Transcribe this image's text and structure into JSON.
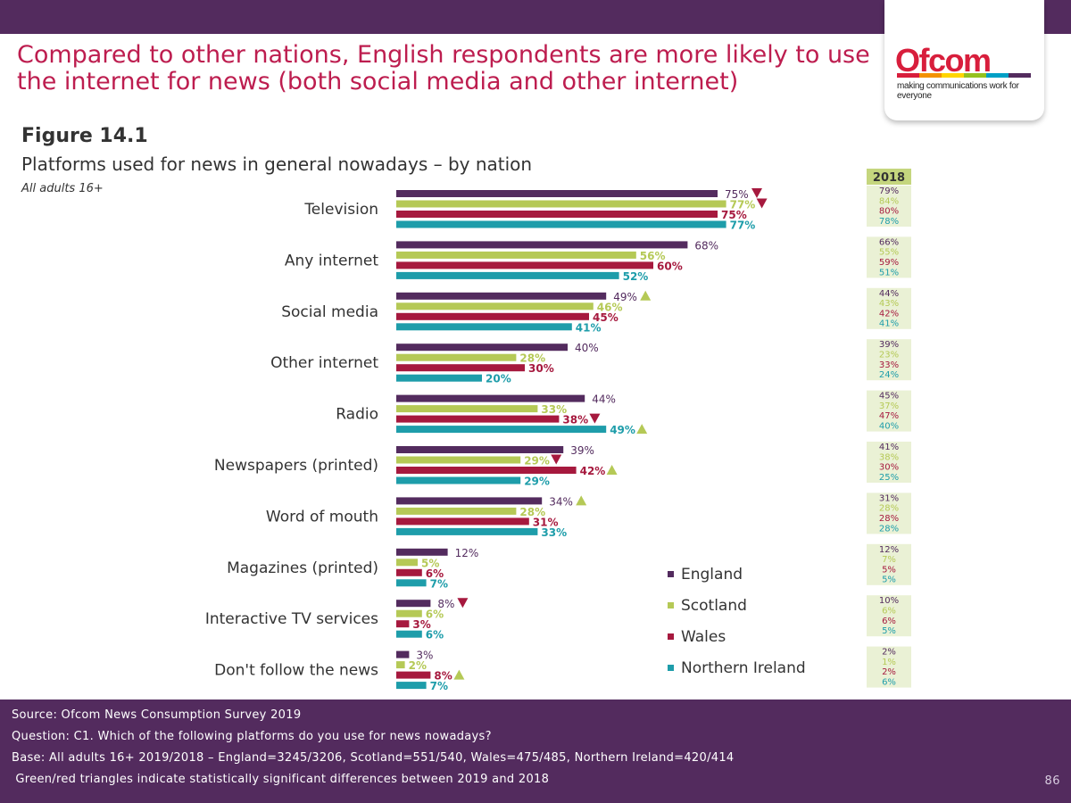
{
  "headline": "Compared to other nations, English respondents are more likely to use the internet for news (both social media and other internet)",
  "figure": {
    "label": "Figure 14.1",
    "subtitle": "Platforms used for news in general nowadays – by nation",
    "base": "All adults 16+"
  },
  "logo": {
    "word": "Ofcom",
    "tagline": "making communications work for everyone",
    "stripe_colors": [
      "#D81E3C",
      "#F39200",
      "#FFD500",
      "#95C11F",
      "#00A0C6",
      "#532B5E"
    ]
  },
  "colors": {
    "England": "#532B5E",
    "Scotland": "#B5C956",
    "Wales": "#A6193E",
    "Northern Ireland": "#1E9DAA",
    "green_triangle": "#B5C956",
    "red_triangle": "#A6193E",
    "table_bg": "#EAF1D5",
    "table_header_bg": "#C5D67E"
  },
  "chart_data": {
    "type": "bar",
    "orientation": "horizontal",
    "title": "Platforms used for news in general nowadays – by nation",
    "xlim": [
      0,
      100
    ],
    "categories": [
      "Television",
      "Any internet",
      "Social media",
      "Other internet",
      "Radio",
      "Newspapers (printed)",
      "Word of mouth",
      "Magazines (printed)",
      "Interactive TV services",
      "Don't follow the news"
    ],
    "series": [
      {
        "name": "England",
        "values": [
          75,
          68,
          49,
          40,
          44,
          39,
          34,
          12,
          8,
          3
        ],
        "labels": [
          "75%",
          "68%",
          "49%",
          "40%",
          "44%",
          "39%",
          "34%",
          "12%",
          "8%",
          "3%"
        ],
        "significance": [
          "down",
          "",
          "up",
          "",
          "",
          "",
          "up",
          "",
          "down",
          ""
        ]
      },
      {
        "name": "Scotland",
        "values": [
          77,
          56,
          46,
          28,
          33,
          29,
          28,
          5,
          6,
          2
        ],
        "labels": [
          "77%",
          "56%",
          "46%",
          "28%",
          "33%",
          "29%",
          "28%",
          "5%",
          "6%",
          "2%"
        ],
        "significance": [
          "down",
          "",
          "",
          "",
          "",
          "down",
          "",
          "",
          "",
          ""
        ]
      },
      {
        "name": "Wales",
        "values": [
          75,
          60,
          45,
          30,
          38,
          42,
          31,
          6,
          3,
          8
        ],
        "labels": [
          "75%",
          "60%",
          "45%",
          "30%",
          "38%",
          "42%",
          "31%",
          "6%",
          "3%",
          "8%"
        ],
        "significance": [
          "",
          "",
          "",
          "",
          "down",
          "up",
          "",
          "",
          "",
          "up"
        ]
      },
      {
        "name": "Northern Ireland",
        "values": [
          77,
          52,
          41,
          20,
          49,
          29,
          33,
          7,
          6,
          7
        ],
        "labels": [
          "77%",
          "52%",
          "41%",
          "20%",
          "49%",
          "29%",
          "33%",
          "7%",
          "6%",
          "7%"
        ],
        "significance": [
          "",
          "",
          "",
          "",
          "up",
          "",
          "",
          "",
          "",
          ""
        ]
      }
    ],
    "comparison_2018": {
      "header": "2018",
      "values": [
        [
          "79%",
          "84%",
          "80%",
          "78%"
        ],
        [
          "66%",
          "55%",
          "59%",
          "51%"
        ],
        [
          "44%",
          "43%",
          "42%",
          "41%"
        ],
        [
          "39%",
          "23%",
          "33%",
          "24%"
        ],
        [
          "45%",
          "37%",
          "47%",
          "40%"
        ],
        [
          "41%",
          "38%",
          "30%",
          "25%"
        ],
        [
          "31%",
          "28%",
          "28%",
          "28%"
        ],
        [
          "12%",
          "7%",
          "5%",
          "5%"
        ],
        [
          "10%",
          "6%",
          "6%",
          "5%"
        ],
        [
          "2%",
          "1%",
          "2%",
          "6%"
        ]
      ]
    },
    "legend": [
      "England",
      "Scotland",
      "Wales",
      "Northern Ireland"
    ],
    "legend_position": "bottom-right"
  },
  "footer": {
    "source": "Source: Ofcom News Consumption Survey 2019",
    "question": "Question: C1. Which of the following platforms do you use for news nowadays?",
    "base": "Base: All adults 16+ 2019/2018 – England=3245/3206, Scotland=551/540, Wales=475/485, Northern Ireland=420/414",
    "note": " Green/red triangles indicate statistically significant differences between 2019 and 2018",
    "page_number": "86"
  }
}
